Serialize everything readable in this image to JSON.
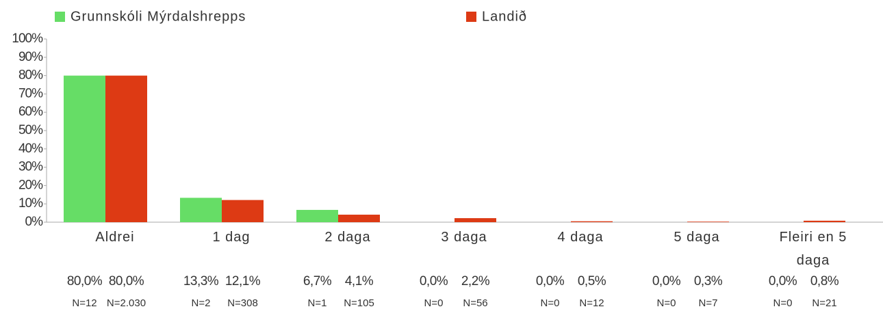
{
  "chart_data": {
    "type": "bar",
    "categories": [
      "Aldrei",
      "1 dag",
      "2 daga",
      "3 daga",
      "4 daga",
      "5 daga",
      "Fleiri en 5 daga"
    ],
    "series": [
      {
        "name": "Grunnskóli Mýrdalshrepps",
        "color": "#66dd66",
        "values": [
          80,
          13.3,
          6.7,
          0,
          0,
          0,
          0
        ],
        "value_labels": [
          "80,0%",
          "13,3%",
          "6,7%",
          "0,0%",
          "0,0%",
          "0,0%",
          "0,0%"
        ],
        "n_labels": [
          "N=12",
          "N=2",
          "N=1",
          "N=0",
          "N=0",
          "N=0",
          "N=0"
        ]
      },
      {
        "name": "Landið",
        "color": "#dd3a14",
        "values": [
          80,
          12.1,
          4.1,
          2.2,
          0.5,
          0.3,
          0.8
        ],
        "value_labels": [
          "80,0%",
          "12,1%",
          "4,1%",
          "2,2%",
          "0,5%",
          "0,3%",
          "0,8%"
        ],
        "n_labels": [
          "N=2.030",
          "N=308",
          "N=105",
          "N=56",
          "N=12",
          "N=7",
          "N=21"
        ]
      }
    ],
    "ylim": [
      0,
      100
    ],
    "yticks": [
      {
        "value": 0,
        "label": "0%"
      },
      {
        "value": 10,
        "label": "10%"
      },
      {
        "value": 20,
        "label": "20%"
      },
      {
        "value": 30,
        "label": "30%"
      },
      {
        "value": 40,
        "label": "40%"
      },
      {
        "value": 50,
        "label": "50%"
      },
      {
        "value": 60,
        "label": "60%"
      },
      {
        "value": 70,
        "label": "70%"
      },
      {
        "value": 80,
        "label": "80%"
      },
      {
        "value": 90,
        "label": "90%"
      },
      {
        "value": 100,
        "label": "100%"
      }
    ],
    "legend": "top"
  }
}
